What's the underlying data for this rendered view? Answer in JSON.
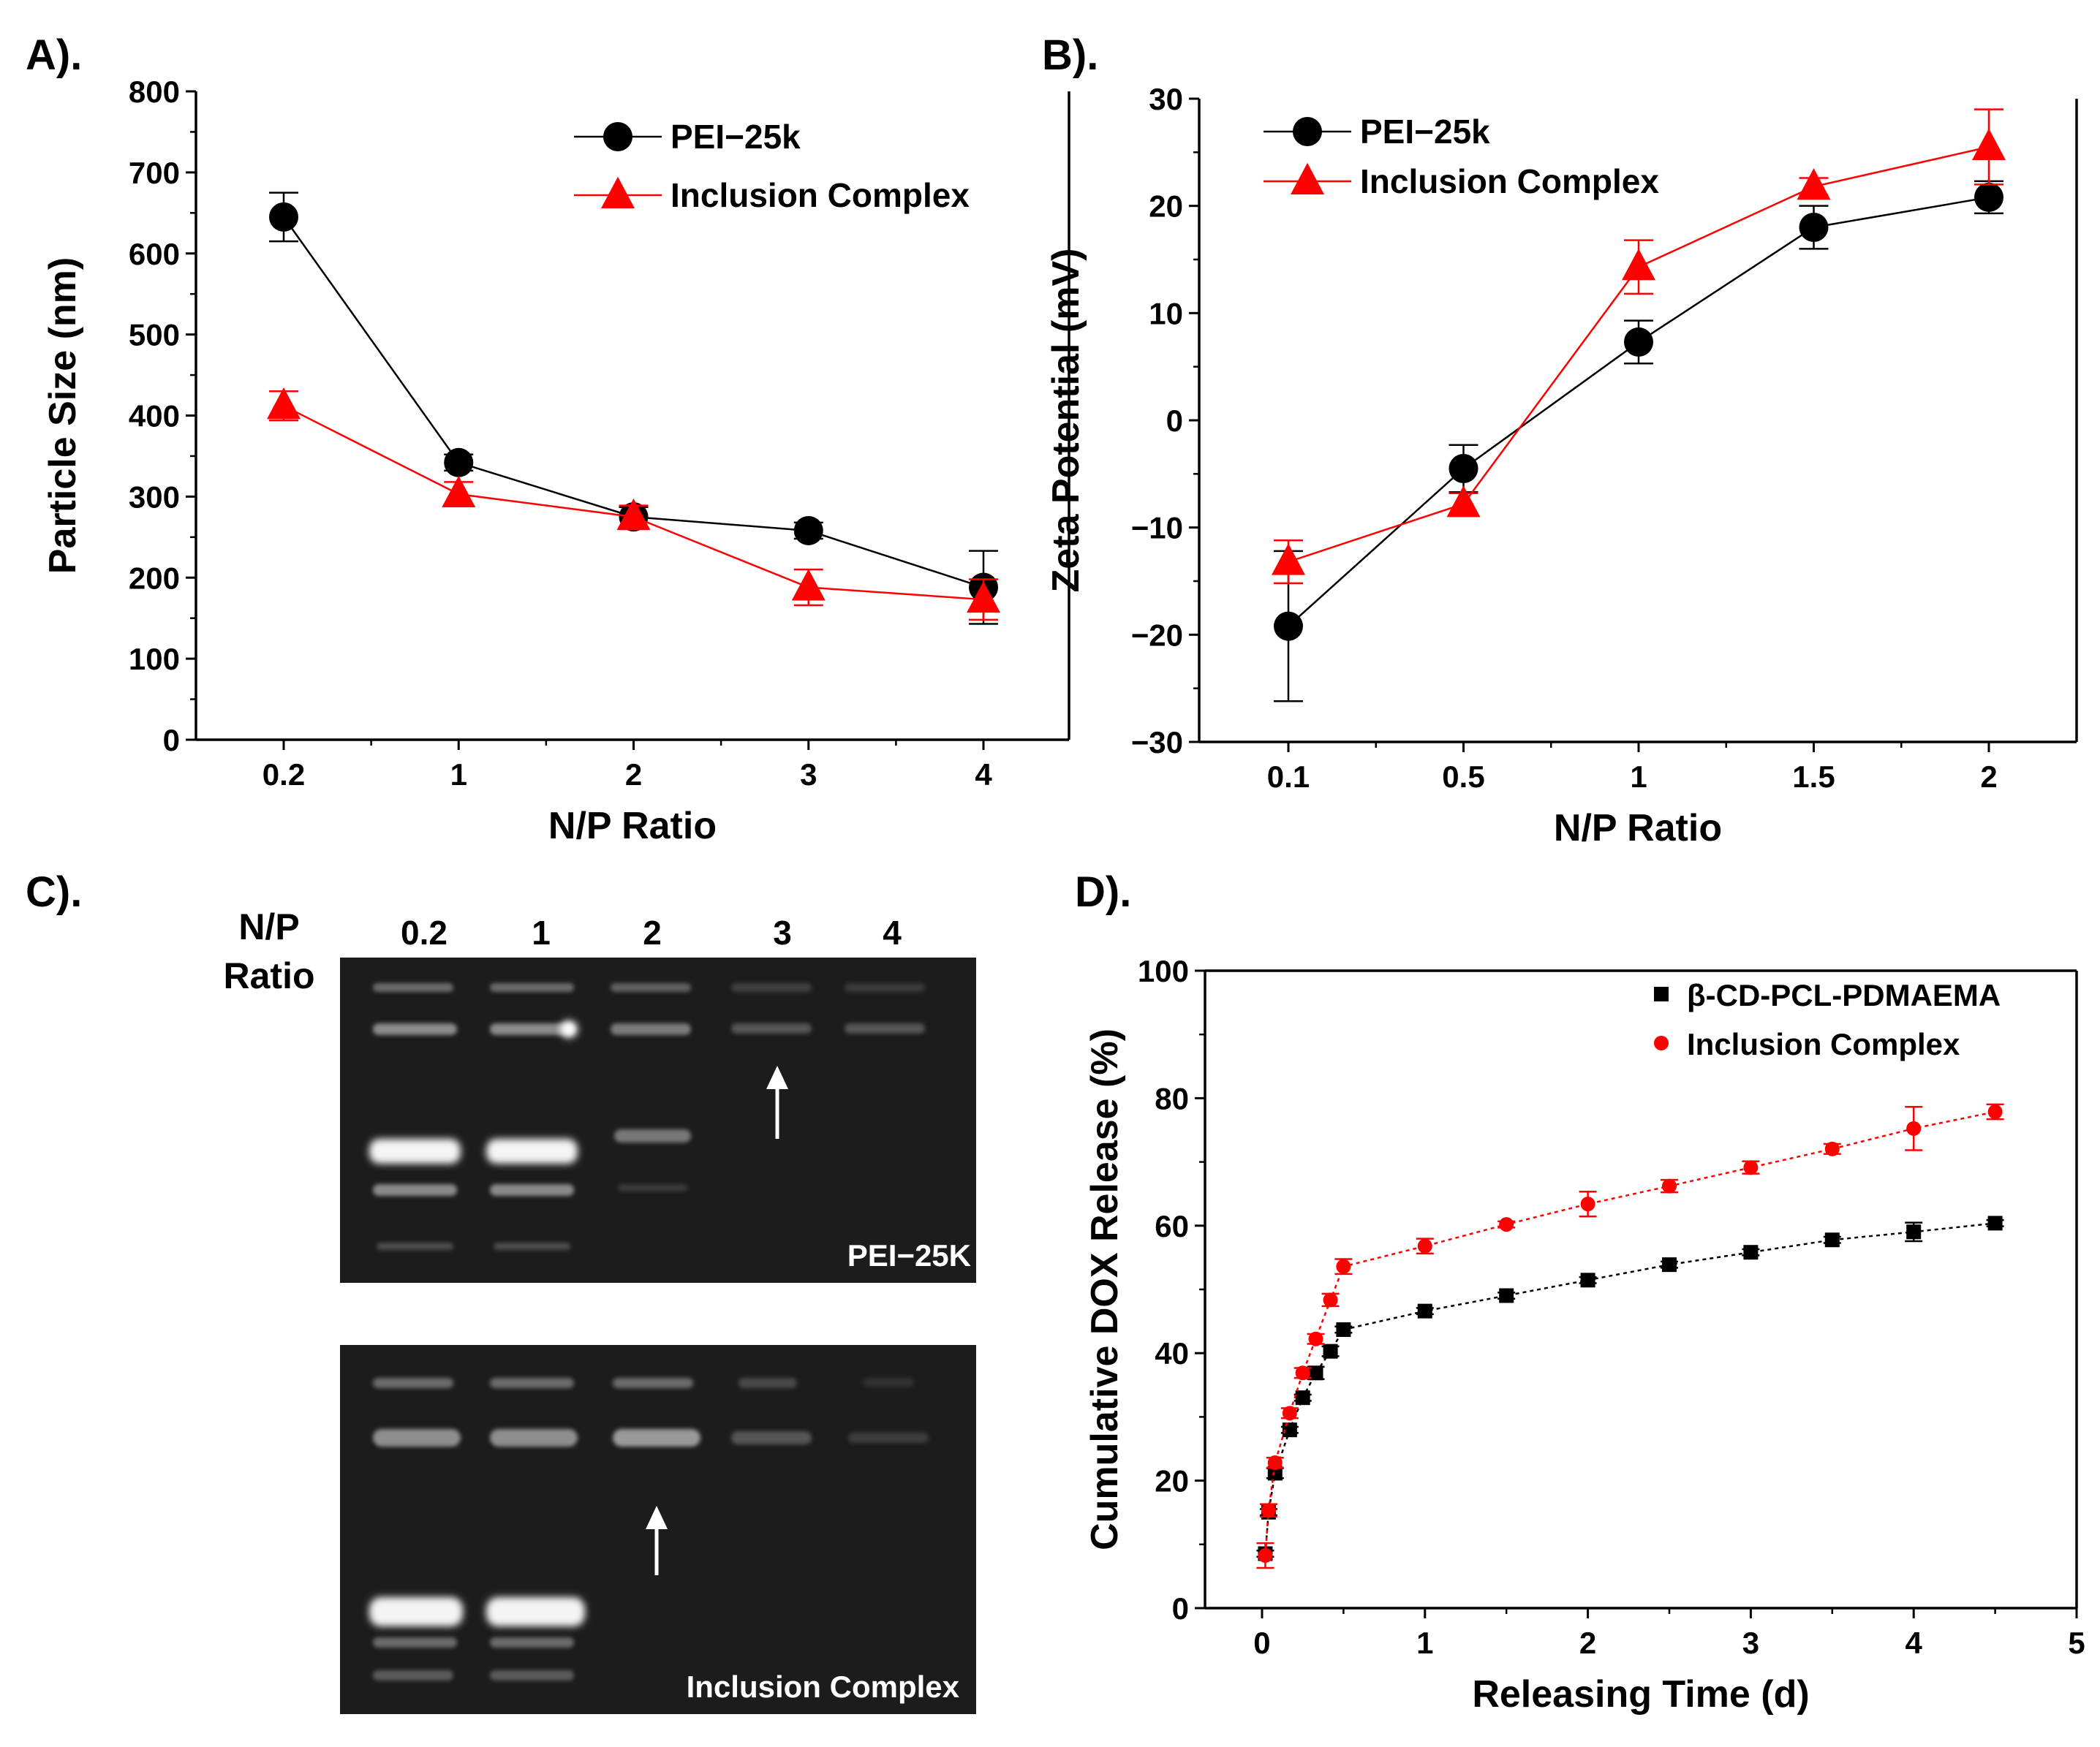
{
  "panels": {
    "A": {
      "label": "A)."
    },
    "B": {
      "label": "B)."
    },
    "C": {
      "label": "C)."
    },
    "D": {
      "label": "D)."
    }
  },
  "gel": {
    "np_label_1": "N/P",
    "np_label_2": "Ratio",
    "lanes": [
      "0.2",
      "1",
      "2",
      "3",
      "4"
    ],
    "top_gel_label": "PEI−25K",
    "bottom_gel_label": "Inclusion Complex"
  },
  "colors": {
    "black_series": "#000000",
    "red_series": "#ff0000",
    "gel_background": "#1a1a1a"
  },
  "chart_data": [
    {
      "id": "A",
      "type": "line",
      "categories": [
        "0.2",
        "1",
        "2",
        "3",
        "4"
      ],
      "xlabel": "N/P Ratio",
      "ylabel": "Particle Size (nm)",
      "ylim": [
        0,
        800
      ],
      "yticks": [
        "0",
        "100",
        "200",
        "300",
        "400",
        "500",
        "600",
        "700",
        "800"
      ],
      "legend_position": "top-right",
      "series": [
        {
          "name": "PEI−25k",
          "color": "#000000",
          "marker": "circle",
          "values": [
            645,
            342,
            275,
            258,
            188
          ],
          "errors": [
            30,
            10,
            12,
            10,
            45
          ]
        },
        {
          "name": "Inclusion Complex",
          "color": "#ff0000",
          "marker": "triangle",
          "values": [
            412,
            303,
            275,
            188,
            173
          ],
          "errors": [
            18,
            15,
            14,
            22,
            25
          ]
        }
      ]
    },
    {
      "id": "B",
      "type": "line",
      "categories": [
        "0.1",
        "0.5",
        "1",
        "1.5",
        "2"
      ],
      "xlabel": "N/P Ratio",
      "ylabel": "Zeta Potential (mV)",
      "ylim": [
        -30,
        30
      ],
      "yticks": [
        "−30",
        "−20",
        "−10",
        "0",
        "10",
        "20",
        "30"
      ],
      "legend_position": "top-left",
      "series": [
        {
          "name": "PEI−25k",
          "color": "#000000",
          "marker": "circle",
          "values": [
            -19.2,
            -4.5,
            7.3,
            18,
            20.8
          ],
          "errors": [
            7,
            2.2,
            2,
            2,
            1.5
          ]
        },
        {
          "name": "Inclusion Complex",
          "color": "#ff0000",
          "marker": "triangle",
          "values": [
            -13.2,
            -7.8,
            14.3,
            21.8,
            25.5
          ],
          "errors": [
            2,
            1,
            2.5,
            0.8,
            3.5
          ]
        }
      ]
    },
    {
      "id": "D",
      "type": "scatter",
      "xlabel": "Releasing Time (d)",
      "ylabel": "Cumulative DOX Release (%)",
      "xlim": [
        -0.35,
        5
      ],
      "ylim": [
        -3,
        100
      ],
      "xticks": [
        "0",
        "1",
        "2",
        "3",
        "4",
        "5"
      ],
      "yticks": [
        "0",
        "20",
        "40",
        "60",
        "80",
        "100"
      ],
      "legend_position": "top-right",
      "series": [
        {
          "name": "β-CD-PCL-PDMAEMA",
          "color": "#000000",
          "marker": "square",
          "x": [
            0.02,
            0.04,
            0.08,
            0.17,
            0.25,
            0.33,
            0.42,
            0.5,
            1,
            1.5,
            2,
            2.5,
            3,
            3.5,
            4,
            4.5
          ],
          "values": [
            5.8,
            12.5,
            18.8,
            25.8,
            31,
            35,
            38.5,
            42,
            45,
            47.5,
            50,
            52.5,
            54.5,
            56.5,
            57.8,
            59.2
          ],
          "errors": [
            0.5,
            0.5,
            0.8,
            0.5,
            0.5,
            1,
            0.8,
            0.5,
            0.5,
            0.5,
            0.5,
            0.5,
            0.5,
            0.5,
            1.5,
            0.5
          ]
        },
        {
          "name": "Inclusion Complex",
          "color": "#ff0000",
          "marker": "circle",
          "x": [
            0.02,
            0.04,
            0.08,
            0.17,
            0.25,
            0.33,
            0.42,
            0.5,
            1,
            1.5,
            2,
            2.5,
            3,
            3.5,
            4,
            4.5
          ],
          "values": [
            5.5,
            12.8,
            20.5,
            28.5,
            35,
            40.5,
            46.8,
            52.2,
            55.5,
            59,
            62.3,
            65.2,
            68.2,
            71.2,
            74.5,
            77.2
          ],
          "errors": [
            2,
            1,
            0.8,
            0.8,
            0.8,
            0.8,
            1,
            1.2,
            1.2,
            0.5,
            2,
            1,
            1,
            0.8,
            3.5,
            1.2
          ]
        }
      ]
    }
  ]
}
